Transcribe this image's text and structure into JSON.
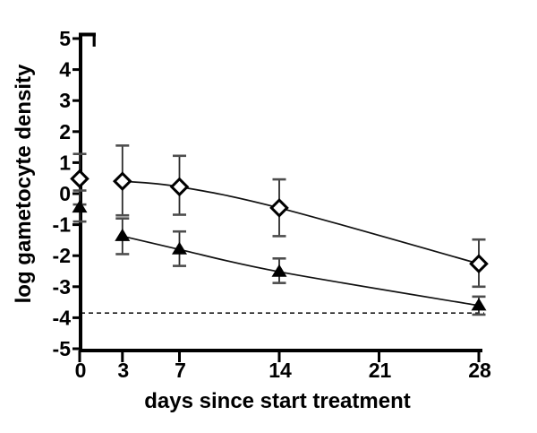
{
  "chart_data": {
    "type": "scatter",
    "title": "",
    "xlabel": "days since start treatment",
    "ylabel": "log gametocyte density",
    "xlim": [
      0,
      28
    ],
    "ylim": [
      -5,
      5
    ],
    "grid": false,
    "legend": "none",
    "xticks": [
      0,
      3,
      7,
      14,
      21,
      28
    ],
    "yticks": [
      5,
      4,
      3,
      2,
      1,
      0,
      -1,
      -2,
      -3,
      -4,
      -5
    ],
    "threshold_line": {
      "y": -3.85,
      "style": "dashed"
    },
    "series": [
      {
        "name": "open-diamond-group",
        "marker": "diamond-open",
        "fit_line_from_x": 3,
        "points": [
          {
            "x": 0,
            "y": 0.48,
            "err_lo": -0.35,
            "err_hi": 1.28
          },
          {
            "x": 3,
            "y": 0.4,
            "err_lo": -0.7,
            "err_hi": 1.55
          },
          {
            "x": 7,
            "y": 0.22,
            "err_lo": -0.68,
            "err_hi": 1.22
          },
          {
            "x": 14,
            "y": -0.46,
            "err_lo": -1.37,
            "err_hi": 0.46
          },
          {
            "x": 28,
            "y": -2.26,
            "err_lo": -3.0,
            "err_hi": -1.48
          }
        ]
      },
      {
        "name": "filled-triangle-group",
        "marker": "triangle-filled",
        "fit_line_from_x": 3,
        "points": [
          {
            "x": 0,
            "y": -0.45,
            "err_lo": -0.9,
            "err_hi": 0.1
          },
          {
            "x": 3,
            "y": -1.37,
            "err_lo": -1.95,
            "err_hi": -0.8
          },
          {
            "x": 7,
            "y": -1.8,
            "err_lo": -2.33,
            "err_hi": -1.22
          },
          {
            "x": 14,
            "y": -2.52,
            "err_lo": -2.88,
            "err_hi": -2.09
          },
          {
            "x": 28,
            "y": -3.61,
            "err_lo": -3.9,
            "err_hi": -3.32
          }
        ]
      }
    ],
    "colors": {
      "axis": "#000000",
      "curve": "#111111",
      "error_line": "#2b2b2b",
      "error_cap": "#4d4d4d",
      "threshold": "#1a1a1a",
      "marker_fill_open": "#ffffff",
      "marker_stroke": "#000000",
      "background": "#ffffff"
    }
  }
}
